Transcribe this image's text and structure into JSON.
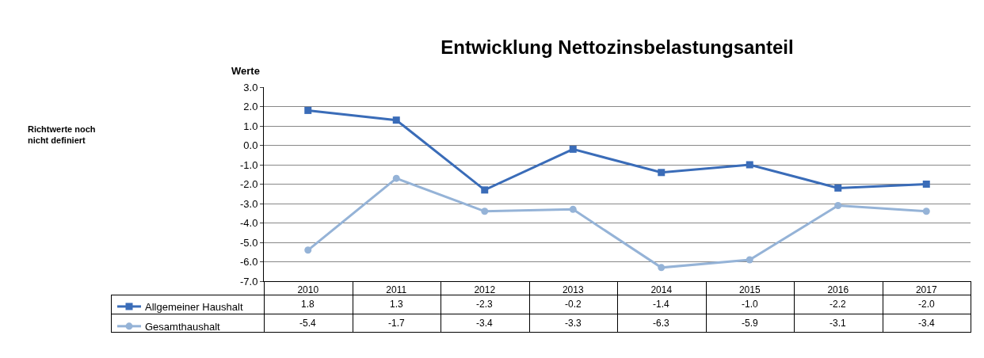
{
  "chart_data": {
    "type": "line",
    "title": "Entwicklung Nettozinsbelastungsanteil",
    "ylabel": "Werte",
    "annotations": [
      "Richtwerte noch nicht definiert"
    ],
    "categories": [
      "2010",
      "2011",
      "2012",
      "2013",
      "2014",
      "2015",
      "2016",
      "2017"
    ],
    "series": [
      {
        "name": "Allgemeiner Haushalt",
        "color": "#3a6cb8",
        "marker": "square",
        "values": [
          1.8,
          1.3,
          -2.3,
          -0.2,
          -1.4,
          -1.0,
          -2.2,
          -2.0
        ],
        "value_labels": [
          "1.8",
          "1.3",
          "-2.3",
          "-0.2",
          "-1.4",
          "-1.0",
          "-2.2",
          "-2.0"
        ]
      },
      {
        "name": "Gesamthaushalt",
        "color": "#95b3d7",
        "marker": "circle",
        "values": [
          -5.4,
          -1.7,
          -3.4,
          -3.3,
          -6.3,
          -5.9,
          -3.1,
          -3.4
        ],
        "value_labels": [
          "-5.4",
          "-1.7",
          "-3.4",
          "-3.3",
          "-6.3",
          "-5.9",
          "-3.1",
          "-3.4"
        ]
      }
    ],
    "ylim": [
      -7,
      3
    ],
    "yticks": [
      {
        "value": 3,
        "label": "3.0"
      },
      {
        "value": 2,
        "label": "2.0"
      },
      {
        "value": 1,
        "label": "1.0"
      },
      {
        "value": 0,
        "label": "0.0"
      },
      {
        "value": -1,
        "label": "-1.0"
      },
      {
        "value": -2,
        "label": "-2.0"
      },
      {
        "value": -3,
        "label": "-3.0"
      },
      {
        "value": -4,
        "label": "-4.0"
      },
      {
        "value": -5,
        "label": "-5.0"
      },
      {
        "value": -6,
        "label": "-6.0"
      },
      {
        "value": -7,
        "label": "-7.0"
      }
    ],
    "grid": "y",
    "legend": "bottom left",
    "line_style": "solid"
  }
}
